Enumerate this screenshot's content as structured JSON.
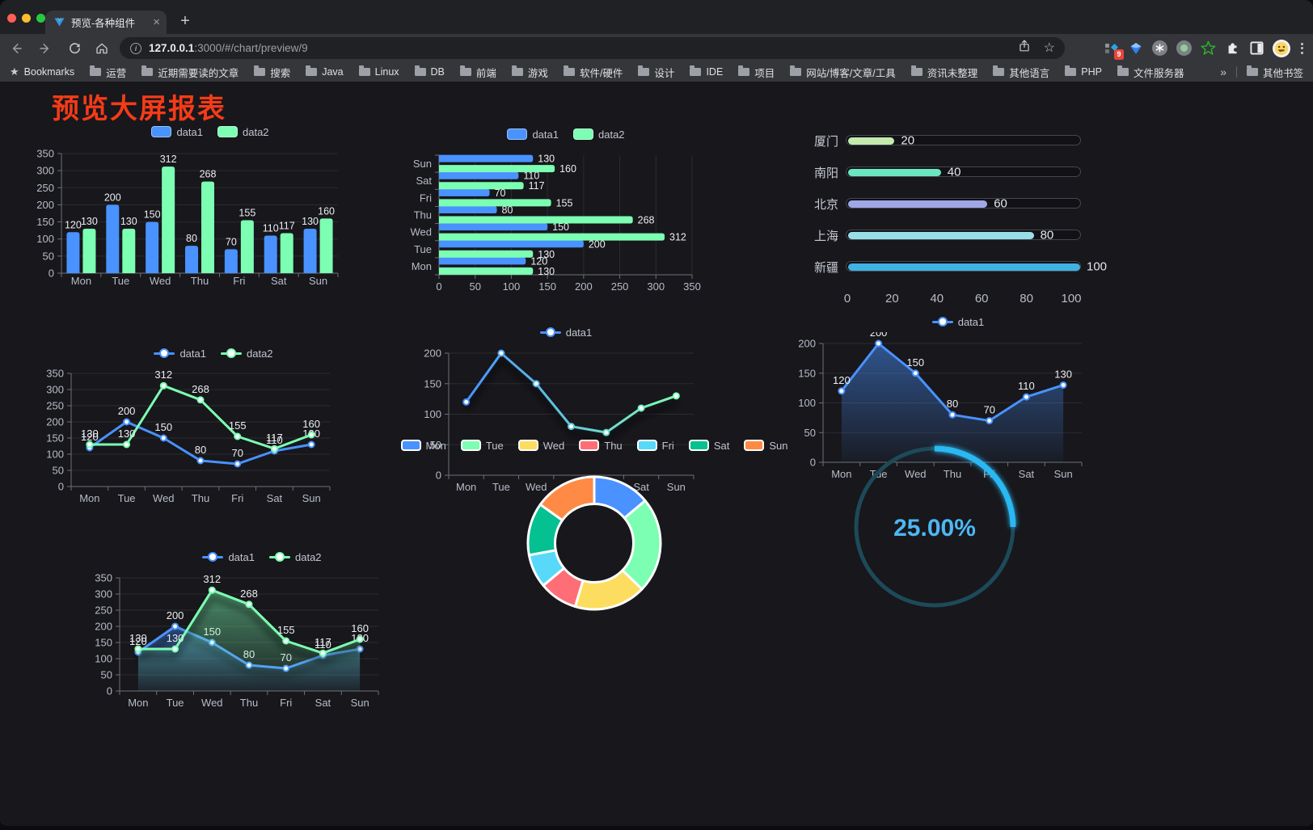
{
  "browser": {
    "tab": {
      "title": "预览-各种组件",
      "close_icon": "×",
      "new_tab_icon": "+"
    },
    "url": {
      "host": "127.0.0.1",
      "path": ":3000/#/chart/preview/9"
    },
    "extension_badge": "9",
    "bookmarks_bar": {
      "star_label": "Bookmarks",
      "folders": [
        "运营",
        "近期需要读的文章",
        "搜索",
        "Java",
        "Linux",
        "DB",
        "前端",
        "游戏",
        "软件/硬件",
        "设计",
        "IDE",
        "项目",
        "网站/博客/文章/工具",
        "资讯未整理",
        "其他语言",
        "PHP",
        "文件服务器"
      ],
      "overflow_chevron": "»",
      "other_bookmarks": "其他书签"
    }
  },
  "page": {
    "title": "预览大屏报表",
    "title_color": "#f63b17",
    "background": "#17171c"
  },
  "chart_data": [
    {
      "id": "bar-grouped-vertical",
      "type": "bar",
      "orientation": "vertical",
      "categories": [
        "Mon",
        "Tue",
        "Wed",
        "Thu",
        "Fri",
        "Sat",
        "Sun"
      ],
      "series": [
        {
          "name": "data1",
          "color": "#4992ff",
          "values": [
            120,
            200,
            150,
            80,
            70,
            110,
            130
          ]
        },
        {
          "name": "data2",
          "color": "#7cffb2",
          "values": [
            130,
            130,
            312,
            268,
            155,
            117,
            160
          ]
        }
      ],
      "ylim": [
        0,
        350
      ],
      "ytick_step": 50,
      "grid": true,
      "legend_position": "top",
      "value_labels": true
    },
    {
      "id": "bar-grouped-horizontal",
      "type": "bar",
      "orientation": "horizontal",
      "categories": [
        "Mon",
        "Tue",
        "Wed",
        "Thu",
        "Fri",
        "Sat",
        "Sun"
      ],
      "series": [
        {
          "name": "data1",
          "color": "#4992ff",
          "values": [
            120,
            200,
            150,
            80,
            70,
            110,
            130
          ]
        },
        {
          "name": "data2",
          "color": "#7cffb2",
          "values": [
            130,
            130,
            312,
            268,
            155,
            117,
            160
          ]
        }
      ],
      "xlim": [
        0,
        350
      ],
      "xtick_step": 50,
      "grid": true,
      "legend_position": "top",
      "value_labels": true
    },
    {
      "id": "progress-bars",
      "type": "bar",
      "orientation": "progress",
      "categories": [
        "厦门",
        "南阳",
        "北京",
        "上海",
        "新疆"
      ],
      "values": [
        20,
        40,
        60,
        80,
        100
      ],
      "colors": [
        "#c4ebad",
        "#6be6c1",
        "#a0a7e6",
        "#96dee8",
        "#3fb1e3"
      ],
      "xlim": [
        0,
        100
      ],
      "xticks": [
        0,
        20,
        40,
        60,
        80,
        100
      ],
      "value_labels": true
    },
    {
      "id": "line-two-series",
      "type": "line",
      "categories": [
        "Mon",
        "Tue",
        "Wed",
        "Thu",
        "Fri",
        "Sat",
        "Sun"
      ],
      "series": [
        {
          "name": "data1",
          "color": "#4992ff",
          "values": [
            120,
            200,
            150,
            80,
            70,
            110,
            130
          ]
        },
        {
          "name": "data2",
          "color": "#7cffb2",
          "values": [
            130,
            130,
            312,
            268,
            155,
            117,
            160
          ]
        }
      ],
      "ylim": [
        0,
        350
      ],
      "ytick_step": 50,
      "grid": true,
      "legend_position": "top",
      "value_labels": true
    },
    {
      "id": "line-gradient-shadow",
      "type": "line",
      "categories": [
        "Mon",
        "Tue",
        "Wed",
        "Thu",
        "Fri",
        "Sat",
        "Sun"
      ],
      "series": [
        {
          "name": "data1",
          "color": "#4992ff",
          "color_gradient": [
            "#4992ff",
            "#7cffb2"
          ],
          "values": [
            120,
            200,
            150,
            80,
            70,
            110,
            130
          ]
        }
      ],
      "ylim": [
        0,
        200
      ],
      "ytick_step": 50,
      "grid": true,
      "legend_position": "top",
      "value_labels": false,
      "shadow": true
    },
    {
      "id": "area-single-series",
      "type": "area",
      "categories": [
        "Mon",
        "Tue",
        "Wed",
        "Thu",
        "Fri",
        "Sat",
        "Sun"
      ],
      "series": [
        {
          "name": "data1",
          "color": "#4992ff",
          "values": [
            120,
            200,
            150,
            80,
            70,
            110,
            130
          ]
        }
      ],
      "ylim": [
        0,
        200
      ],
      "ytick_step": 50,
      "grid": true,
      "legend_position": "top",
      "value_labels": true
    },
    {
      "id": "area-two-series",
      "type": "area",
      "categories": [
        "Mon",
        "Tue",
        "Wed",
        "Thu",
        "Fri",
        "Sat",
        "Sun"
      ],
      "series": [
        {
          "name": "data1",
          "color": "#4992ff",
          "values": [
            120,
            200,
            150,
            80,
            70,
            110,
            130
          ]
        },
        {
          "name": "data2",
          "color": "#7cffb2",
          "values": [
            130,
            130,
            312,
            268,
            155,
            117,
            160
          ]
        }
      ],
      "ylim": [
        0,
        350
      ],
      "ytick_step": 50,
      "grid": true,
      "legend_position": "top",
      "value_labels": true,
      "shadow": true
    },
    {
      "id": "donut",
      "type": "pie",
      "categories": [
        "Mon",
        "Tue",
        "Wed",
        "Thu",
        "Fri",
        "Sat",
        "Sun"
      ],
      "values": [
        120,
        200,
        150,
        80,
        70,
        110,
        130
      ],
      "colors": [
        "#4992ff",
        "#7cffb2",
        "#fddd60",
        "#ff6e76",
        "#58d9f9",
        "#05c091",
        "#ff8a45"
      ],
      "legend_position": "top",
      "border_color": "#ffffff"
    },
    {
      "id": "ring-progress",
      "type": "gauge",
      "value": 25,
      "max": 100,
      "label": "25.00%",
      "color": "#2ab8f3",
      "track_color": "#1d4a59",
      "text_color": "#4db7f2"
    }
  ]
}
